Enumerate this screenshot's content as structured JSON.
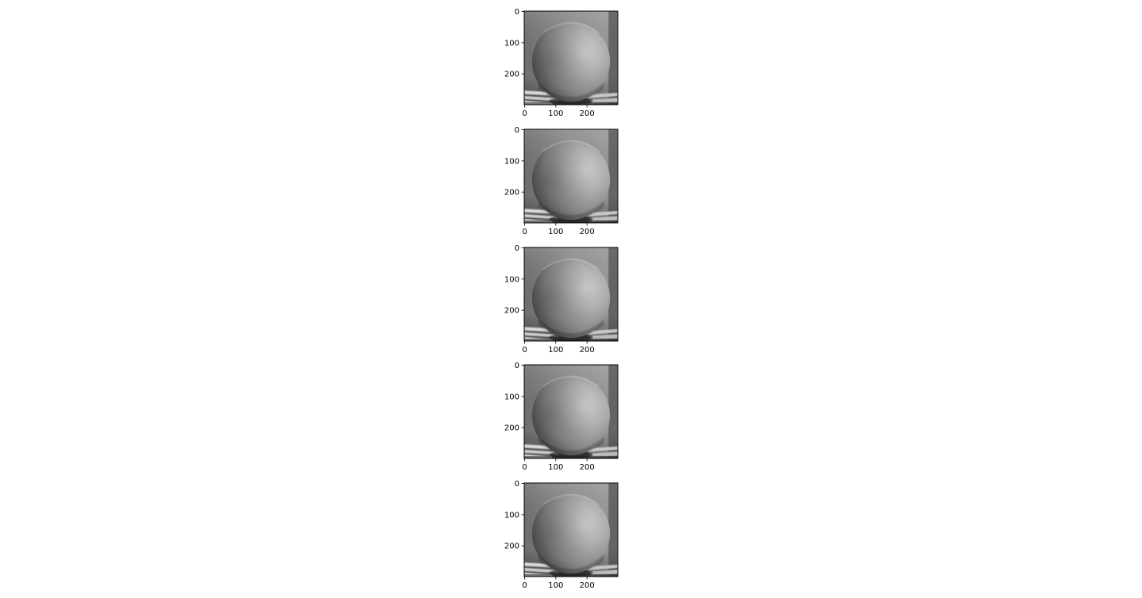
{
  "figure": {
    "background": "#ffffff",
    "subplot_count": 5,
    "layout": "single column, stacked vertically",
    "colormap": "gray"
  },
  "subplots": [
    {
      "image": "grayscale-orange-photo",
      "x_ticks": [
        "0",
        "100",
        "200"
      ],
      "y_ticks": [
        "0",
        "100",
        "200"
      ],
      "x_range": [
        0,
        300
      ],
      "y_range": [
        0,
        300
      ]
    },
    {
      "image": "grayscale-orange-photo",
      "x_ticks": [
        "0",
        "100",
        "200"
      ],
      "y_ticks": [
        "0",
        "100",
        "200"
      ],
      "x_range": [
        0,
        300
      ],
      "y_range": [
        0,
        300
      ]
    },
    {
      "image": "grayscale-orange-photo",
      "x_ticks": [
        "0",
        "100",
        "200"
      ],
      "y_ticks": [
        "0",
        "100",
        "200"
      ],
      "x_range": [
        0,
        300
      ],
      "y_range": [
        0,
        300
      ]
    },
    {
      "image": "grayscale-orange-photo",
      "x_ticks": [
        "0",
        "100",
        "200"
      ],
      "y_ticks": [
        "0",
        "100",
        "200"
      ],
      "x_range": [
        0,
        300
      ],
      "y_range": [
        0,
        300
      ]
    },
    {
      "image": "grayscale-orange-photo",
      "x_ticks": [
        "0",
        "100",
        "200"
      ],
      "y_ticks": [
        "0",
        "100",
        "200"
      ],
      "x_range": [
        0,
        300
      ],
      "y_range": [
        0,
        300
      ]
    }
  ]
}
